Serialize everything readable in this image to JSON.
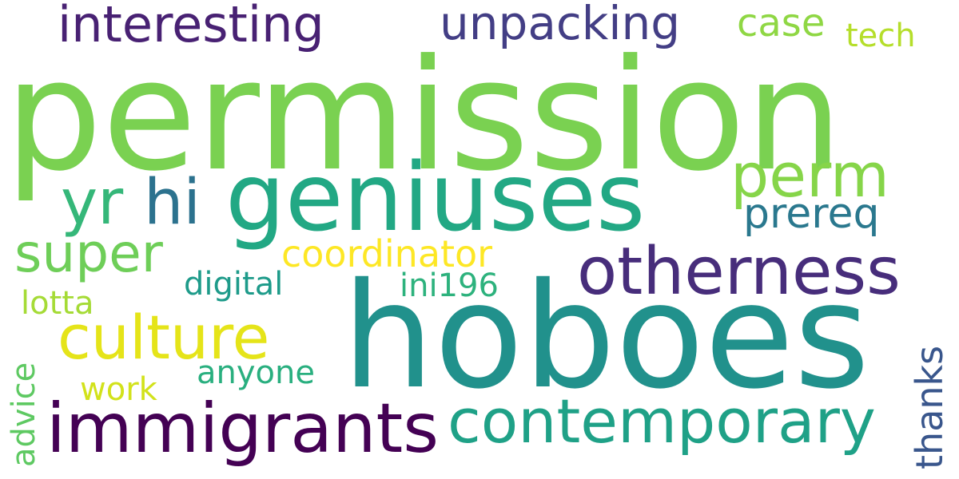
{
  "words": [
    {
      "text": "permission",
      "color": "#7ad151"
    },
    {
      "text": "hoboes",
      "color": "#21918c"
    },
    {
      "text": "geniuses",
      "color": "#22a884"
    },
    {
      "text": "otherness",
      "color": "#472d7b"
    },
    {
      "text": "immigrants",
      "color": "#440154"
    },
    {
      "text": "contemporary",
      "color": "#1fa187"
    },
    {
      "text": "culture",
      "color": "#e5e419"
    },
    {
      "text": "interesting",
      "color": "#482173"
    },
    {
      "text": "unpacking",
      "color": "#433e85"
    },
    {
      "text": "perm",
      "color": "#86d549"
    },
    {
      "text": "yr",
      "color": "#35b779"
    },
    {
      "text": "hi",
      "color": "#2c728e"
    },
    {
      "text": "super",
      "color": "#6ece58"
    },
    {
      "text": "prereq",
      "color": "#2a788e"
    },
    {
      "text": "coordinator",
      "color": "#fde725"
    },
    {
      "text": "case",
      "color": "#8fd744"
    },
    {
      "text": "tech",
      "color": "#b5de2b"
    },
    {
      "text": "digital",
      "color": "#1e9b8a"
    },
    {
      "text": "ini196",
      "color": "#2db27d"
    },
    {
      "text": "lotta",
      "color": "#a5db36"
    },
    {
      "text": "anyone",
      "color": "#29af7f"
    },
    {
      "text": "work",
      "color": "#d2e21b"
    },
    {
      "text": "advice",
      "color": "#5ec962"
    },
    {
      "text": "thanks",
      "color": "#39568c"
    }
  ]
}
